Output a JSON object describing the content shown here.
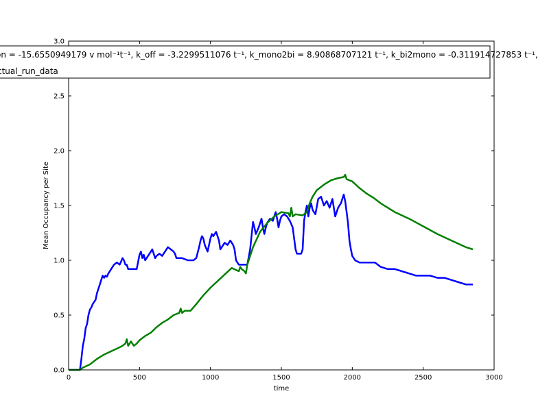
{
  "chart_data": {
    "type": "line",
    "title": "",
    "xlabel": "time",
    "ylabel": "Mean Occupancy per Site",
    "xlim": [
      0,
      3000
    ],
    "ylim": [
      0.0,
      3.0
    ],
    "xticks": [
      "0",
      "500",
      "1000",
      "1500",
      "2000",
      "2500",
      "3000"
    ],
    "yticks": [
      "0.0",
      "0.5",
      "1.0",
      "1.5",
      "2.0",
      "2.5",
      "3.0"
    ],
    "grid": false,
    "legend_placement": "top (partially clipped at left)",
    "legend_entries": [
      "on = -15.6550949179 v mol⁻¹t⁻¹, k_off = -3.2299511076 t⁻¹, k_mono2bi = 8.90868707121 t⁻¹, k_bi2mono = -0.311914727853 t⁻¹,",
      "ctual_run_data"
    ],
    "series": [
      {
        "color": "#0000ff",
        "x": [
          0,
          80,
          90,
          100,
          110,
          120,
          130,
          140,
          150,
          160,
          170,
          180,
          190,
          200,
          210,
          220,
          230,
          240,
          250,
          260,
          270,
          280,
          300,
          320,
          340,
          360,
          370,
          380,
          390,
          400,
          410,
          420,
          440,
          460,
          480,
          500,
          510,
          520,
          530,
          540,
          560,
          580,
          590,
          600,
          610,
          620,
          640,
          660,
          680,
          700,
          720,
          740,
          750,
          760,
          780,
          800,
          840,
          880,
          900,
          920,
          930,
          940,
          950,
          960,
          980,
          1000,
          1010,
          1020,
          1040,
          1060,
          1070,
          1080,
          1100,
          1120,
          1140,
          1160,
          1170,
          1180,
          1200,
          1220,
          1240,
          1260,
          1280,
          1300,
          1310,
          1320,
          1340,
          1360,
          1370,
          1380,
          1390,
          1400,
          1420,
          1440,
          1460,
          1470,
          1480,
          1490,
          1500,
          1520,
          1540,
          1560,
          1580,
          1590,
          1600,
          1610,
          1620,
          1640,
          1650,
          1660,
          1670,
          1680,
          1690,
          1700,
          1710,
          1720,
          1740,
          1760,
          1780,
          1800,
          1820,
          1840,
          1860,
          1880,
          1900,
          1920,
          1940,
          1950,
          1960,
          1970,
          1980,
          1990,
          2000,
          2020,
          2050,
          2100,
          2150,
          2160,
          2200,
          2250,
          2300,
          2350,
          2400,
          2450,
          2500,
          2550,
          2600,
          2650,
          2700,
          2750,
          2800,
          2850
        ],
        "y": [
          0.0,
          0.0,
          0.1,
          0.22,
          0.28,
          0.38,
          0.42,
          0.5,
          0.55,
          0.57,
          0.6,
          0.62,
          0.64,
          0.7,
          0.74,
          0.78,
          0.82,
          0.86,
          0.84,
          0.86,
          0.85,
          0.88,
          0.92,
          0.96,
          0.98,
          0.96,
          0.99,
          1.02,
          1.0,
          0.96,
          0.96,
          0.92,
          0.92,
          0.92,
          0.92,
          1.05,
          1.08,
          1.02,
          1.05,
          1.0,
          1.04,
          1.08,
          1.1,
          1.06,
          1.02,
          1.04,
          1.06,
          1.04,
          1.08,
          1.12,
          1.1,
          1.08,
          1.06,
          1.02,
          1.02,
          1.02,
          1.0,
          1.0,
          1.02,
          1.12,
          1.18,
          1.22,
          1.2,
          1.14,
          1.08,
          1.2,
          1.24,
          1.22,
          1.26,
          1.18,
          1.1,
          1.12,
          1.16,
          1.14,
          1.18,
          1.14,
          1.1,
          1.0,
          0.96,
          0.96,
          0.96,
          0.96,
          1.1,
          1.35,
          1.3,
          1.24,
          1.3,
          1.38,
          1.3,
          1.24,
          1.3,
          1.34,
          1.38,
          1.36,
          1.44,
          1.38,
          1.3,
          1.36,
          1.4,
          1.42,
          1.4,
          1.36,
          1.3,
          1.2,
          1.1,
          1.06,
          1.06,
          1.06,
          1.1,
          1.36,
          1.44,
          1.5,
          1.4,
          1.48,
          1.52,
          1.46,
          1.42,
          1.56,
          1.58,
          1.5,
          1.54,
          1.48,
          1.56,
          1.4,
          1.48,
          1.52,
          1.6,
          1.54,
          1.44,
          1.34,
          1.18,
          1.1,
          1.04,
          1.0,
          0.98,
          0.98,
          0.98,
          0.98,
          0.94,
          0.92,
          0.92,
          0.9,
          0.88,
          0.86,
          0.86,
          0.86,
          0.84,
          0.84,
          0.82,
          0.8,
          0.78,
          0.78
        ]
      },
      {
        "color": "#008000",
        "x": [
          0,
          80,
          100,
          150,
          200,
          250,
          300,
          350,
          380,
          400,
          410,
          420,
          440,
          460,
          480,
          500,
          540,
          580,
          620,
          660,
          700,
          740,
          780,
          790,
          800,
          820,
          860,
          900,
          950,
          1000,
          1050,
          1100,
          1150,
          1200,
          1210,
          1220,
          1240,
          1250,
          1260,
          1280,
          1300,
          1350,
          1400,
          1450,
          1500,
          1550,
          1560,
          1570,
          1580,
          1600,
          1650,
          1680,
          1700,
          1720,
          1750,
          1800,
          1850,
          1900,
          1940,
          1950,
          1960,
          2000,
          2050,
          2100,
          2150,
          2200,
          2250,
          2300,
          2400,
          2500,
          2600,
          2700,
          2800,
          2850
        ],
        "y": [
          0.0,
          0.0,
          0.02,
          0.05,
          0.1,
          0.14,
          0.17,
          0.2,
          0.22,
          0.24,
          0.28,
          0.22,
          0.26,
          0.22,
          0.24,
          0.27,
          0.31,
          0.34,
          0.39,
          0.43,
          0.46,
          0.5,
          0.52,
          0.56,
          0.52,
          0.54,
          0.54,
          0.6,
          0.68,
          0.75,
          0.81,
          0.87,
          0.93,
          0.9,
          0.94,
          0.92,
          0.9,
          0.88,
          0.96,
          1.04,
          1.12,
          1.26,
          1.34,
          1.4,
          1.44,
          1.43,
          1.4,
          1.48,
          1.4,
          1.42,
          1.41,
          1.44,
          1.52,
          1.58,
          1.64,
          1.69,
          1.73,
          1.75,
          1.76,
          1.78,
          1.74,
          1.72,
          1.66,
          1.61,
          1.57,
          1.52,
          1.48,
          1.44,
          1.38,
          1.31,
          1.24,
          1.18,
          1.12,
          1.1
        ]
      }
    ]
  }
}
